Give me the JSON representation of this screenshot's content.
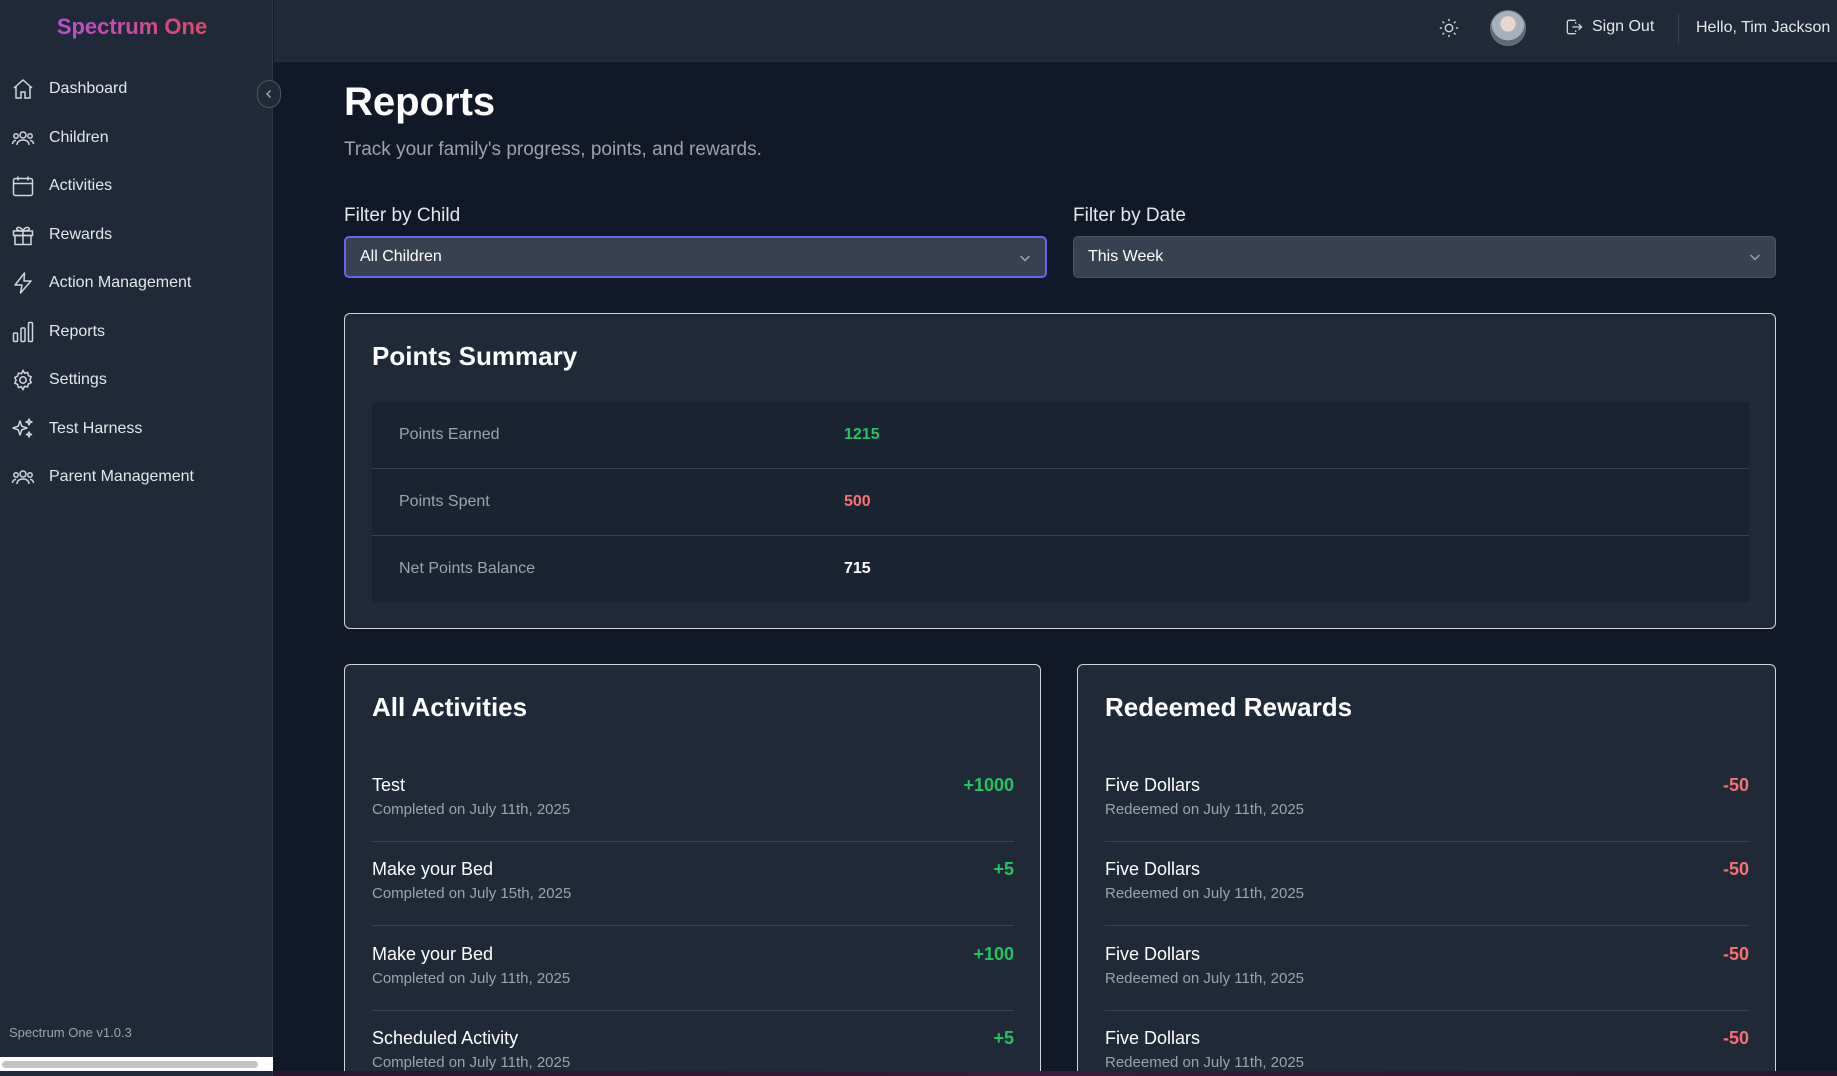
{
  "app": {
    "brand": "Spectrum One",
    "version": "Spectrum One v1.0.3"
  },
  "colors": {
    "positive": "#22c55e",
    "negative": "#f87171",
    "neutral": "#ffffff",
    "accent_focus": "#6366f1"
  },
  "sidebar": {
    "items": [
      {
        "label": "Dashboard",
        "icon": "home-icon"
      },
      {
        "label": "Children",
        "icon": "users-icon"
      },
      {
        "label": "Activities",
        "icon": "calendar-icon"
      },
      {
        "label": "Rewards",
        "icon": "gift-icon"
      },
      {
        "label": "Action Management",
        "icon": "lightning-icon"
      },
      {
        "label": "Reports",
        "icon": "bar-chart-icon"
      },
      {
        "label": "Settings",
        "icon": "gear-icon"
      },
      {
        "label": "Test Harness",
        "icon": "sparkles-icon"
      },
      {
        "label": "Parent Management",
        "icon": "users-icon"
      }
    ]
  },
  "header": {
    "sign_out": "Sign Out",
    "greeting": "Hello, Tim Jackson"
  },
  "page": {
    "title": "Reports",
    "subtitle": "Track your family's progress, points, and rewards."
  },
  "filters": {
    "child_label": "Filter by Child",
    "child_value": "All Children",
    "date_label": "Filter by Date",
    "date_value": "This Week"
  },
  "points_summary": {
    "title": "Points Summary",
    "rows": [
      {
        "label": "Points Earned",
        "value": "1215",
        "tone": "positive"
      },
      {
        "label": "Points Spent",
        "value": "500",
        "tone": "negative"
      },
      {
        "label": "Net Points Balance",
        "value": "715",
        "tone": "neutral"
      }
    ]
  },
  "activities": {
    "title": "All Activities",
    "items": [
      {
        "name": "Test",
        "date": "Completed on July 11th, 2025",
        "points": "+1000"
      },
      {
        "name": "Make your Bed",
        "date": "Completed on July 15th, 2025",
        "points": "+5"
      },
      {
        "name": "Make your Bed",
        "date": "Completed on July 11th, 2025",
        "points": "+100"
      },
      {
        "name": "Scheduled Activity",
        "date": "Completed on July 11th, 2025",
        "points": "+5"
      }
    ]
  },
  "rewards": {
    "title": "Redeemed Rewards",
    "items": [
      {
        "name": "Five Dollars",
        "date": "Redeemed on July 11th, 2025",
        "points": "-50"
      },
      {
        "name": "Five Dollars",
        "date": "Redeemed on July 11th, 2025",
        "points": "-50"
      },
      {
        "name": "Five Dollars",
        "date": "Redeemed on July 11th, 2025",
        "points": "-50"
      },
      {
        "name": "Five Dollars",
        "date": "Redeemed on July 11th, 2025",
        "points": "-50"
      }
    ]
  }
}
